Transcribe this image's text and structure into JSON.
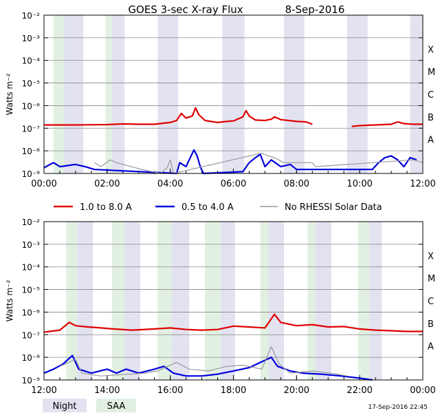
{
  "chart_data": [
    {
      "type": "line",
      "title": "GOES 3-sec X-ray Flux",
      "date": "8-Sep-2016",
      "ylabel": "Watts m⁻²",
      "yscale": "log",
      "ylim": [
        1e-09,
        0.01
      ],
      "ytick_labels": [
        {
          "exp": -2,
          "label": "10⁻²"
        },
        {
          "exp": -3,
          "label": "10⁻³"
        },
        {
          "exp": -4,
          "label": "10⁻⁴"
        },
        {
          "exp": -5,
          "label": "10⁻⁵"
        },
        {
          "exp": -6,
          "label": "10⁻⁶"
        },
        {
          "exp": -7,
          "label": "10⁻⁷"
        },
        {
          "exp": -8,
          "label": "10⁻⁸"
        },
        {
          "exp": -9,
          "label": "10⁻⁹"
        }
      ],
      "flare_classes": [
        {
          "exp": -4,
          "label": "X"
        },
        {
          "exp": -5,
          "label": "M"
        },
        {
          "exp": -6,
          "label": "C"
        },
        {
          "exp": -7,
          "label": "B"
        },
        {
          "exp": -8,
          "label": "A"
        }
      ],
      "x_range_hours": [
        0,
        12
      ],
      "x_tick_labels": [
        {
          "hour": 0,
          "label": "00:00"
        },
        {
          "hour": 2,
          "label": "02:00"
        },
        {
          "hour": 4,
          "label": "04:00"
        },
        {
          "hour": 6,
          "label": "06:00"
        },
        {
          "hour": 8,
          "label": "08:00"
        },
        {
          "hour": 10,
          "label": "10:00"
        },
        {
          "hour": 12,
          "label": "12:00"
        }
      ],
      "night_intervals": [
        [
          0.65,
          1.25
        ],
        [
          2.15,
          2.55
        ],
        [
          3.6,
          4.25
        ],
        [
          5.65,
          6.35
        ],
        [
          7.6,
          8.25
        ],
        [
          9.6,
          10.25
        ],
        [
          11.6,
          12.0
        ]
      ],
      "saa_intervals": [
        [
          0.3,
          0.65
        ],
        [
          1.95,
          2.15
        ]
      ],
      "series": [
        {
          "name": "1.0 to 8.0 A",
          "color": "#e00000",
          "points": [
            [
              0,
              1.4e-07
            ],
            [
              1,
              1.4e-07
            ],
            [
              2,
              1.45e-07
            ],
            [
              2.5,
              1.55e-07
            ],
            [
              3,
              1.5e-07
            ],
            [
              3.5,
              1.5e-07
            ],
            [
              4,
              1.8e-07
            ],
            [
              4.2,
              2.2e-07
            ],
            [
              4.35,
              4.5e-07
            ],
            [
              4.5,
              2.8e-07
            ],
            [
              4.7,
              3.5e-07
            ],
            [
              4.8,
              8e-07
            ],
            [
              4.9,
              4e-07
            ],
            [
              5.1,
              2.2e-07
            ],
            [
              5.5,
              1.8e-07
            ],
            [
              5.8,
              2e-07
            ],
            [
              6,
              2.1e-07
            ],
            [
              6.3,
              3.2e-07
            ],
            [
              6.4,
              6e-07
            ],
            [
              6.5,
              3.5e-07
            ],
            [
              6.7,
              2.3e-07
            ],
            [
              7,
              2.2e-07
            ],
            [
              7.2,
              2.5e-07
            ],
            [
              7.3,
              3.2e-07
            ],
            [
              7.5,
              2.4e-07
            ],
            [
              8,
              2e-07
            ],
            [
              8.3,
              1.9e-07
            ],
            [
              8.5,
              1.5e-07
            ]
          ],
          "points2": [
            [
              9.75,
              1.2e-07
            ],
            [
              10,
              1.3e-07
            ],
            [
              10.5,
              1.4e-07
            ],
            [
              11,
              1.5e-07
            ],
            [
              11.2,
              1.9e-07
            ],
            [
              11.4,
              1.6e-07
            ],
            [
              11.7,
              1.5e-07
            ],
            [
              12,
              1.5e-07
            ]
          ]
        },
        {
          "name": "0.5 to 4.0 A",
          "color": "#0000dd",
          "points": [
            [
              0.0,
              1.8e-09
            ],
            [
              0.3,
              3e-09
            ],
            [
              0.5,
              2e-09
            ],
            [
              1.0,
              2.5e-09
            ],
            [
              1.3,
              2e-09
            ],
            [
              1.6,
              1.5e-09
            ],
            [
              4.2,
              1e-09
            ],
            [
              4.3,
              3e-09
            ],
            [
              4.5,
              2e-09
            ],
            [
              4.6,
              4e-09
            ],
            [
              4.75,
              1.1e-08
            ],
            [
              4.85,
              6e-09
            ],
            [
              4.95,
              2e-09
            ],
            [
              5.05,
              1e-09
            ],
            [
              6.3,
              1.2e-09
            ],
            [
              6.5,
              3e-09
            ],
            [
              6.7,
              5e-09
            ],
            [
              6.85,
              7e-09
            ],
            [
              7.0,
              2e-09
            ],
            [
              7.2,
              4e-09
            ],
            [
              7.5,
              2e-09
            ],
            [
              7.8,
              2.5e-09
            ],
            [
              8.0,
              1.5e-09
            ],
            [
              10.4,
              1.5e-09
            ],
            [
              10.6,
              3e-09
            ],
            [
              10.8,
              5e-09
            ],
            [
              11.0,
              6e-09
            ],
            [
              11.2,
              4e-09
            ],
            [
              11.4,
              2e-09
            ],
            [
              11.6,
              5e-09
            ],
            [
              11.8,
              4e-09
            ]
          ]
        },
        {
          "name": "No RHESSI Solar Data",
          "color": "#999999",
          "points": [
            [
              1.6,
              3e-09
            ],
            [
              1.8,
              2e-09
            ],
            [
              2.1,
              4e-09
            ],
            [
              2.3,
              3e-09
            ],
            [
              3.1,
              1.5e-09
            ],
            [
              3.7,
              1e-09
            ],
            [
              3.9,
              1.8e-09
            ],
            [
              4.0,
              4e-09
            ],
            [
              4.1,
              1e-09
            ],
            [
              6.9,
              8e-09
            ],
            [
              7.1,
              6e-09
            ],
            [
              7.3,
              5e-09
            ],
            [
              7.6,
              3e-09
            ],
            [
              8.5,
              3e-09
            ],
            [
              8.6,
              2e-09
            ],
            [
              11.7,
              4e-09
            ],
            [
              12,
              3e-09
            ]
          ]
        }
      ]
    },
    {
      "type": "line",
      "ylabel": "Watts m⁻²",
      "yscale": "log",
      "ylim": [
        1e-09,
        0.01
      ],
      "ytick_labels": [
        {
          "exp": -2,
          "label": "10⁻²"
        },
        {
          "exp": -3,
          "label": "10⁻³"
        },
        {
          "exp": -4,
          "label": "10⁻⁴"
        },
        {
          "exp": -5,
          "label": "10⁻⁵"
        },
        {
          "exp": -6,
          "label": "10⁻⁶"
        },
        {
          "exp": -7,
          "label": "10⁻⁷"
        },
        {
          "exp": -8,
          "label": "10⁻⁸"
        },
        {
          "exp": -9,
          "label": "10⁻⁹"
        }
      ],
      "flare_classes": [
        {
          "exp": -4,
          "label": "X"
        },
        {
          "exp": -5,
          "label": "M"
        },
        {
          "exp": -6,
          "label": "C"
        },
        {
          "exp": -7,
          "label": "B"
        },
        {
          "exp": -8,
          "label": "A"
        }
      ],
      "x_range_hours": [
        12,
        24
      ],
      "x_tick_labels": [
        {
          "hour": 12,
          "label": "12:00"
        },
        {
          "hour": 14,
          "label": "14:00"
        },
        {
          "hour": 16,
          "label": "16:00"
        },
        {
          "hour": 18,
          "label": "18:00"
        },
        {
          "hour": 20,
          "label": "20:00"
        },
        {
          "hour": 22,
          "label": "22:00"
        },
        {
          "hour": 24,
          "label": "00:00"
        }
      ],
      "night_intervals": [
        [
          13.05,
          13.55
        ],
        [
          14.55,
          15.05
        ],
        [
          16.05,
          16.6
        ],
        [
          17.6,
          18.05
        ],
        [
          19.1,
          19.6
        ],
        [
          20.6,
          21.1
        ],
        [
          22.3,
          22.7
        ]
      ],
      "saa_intervals": [
        [
          12.7,
          13.05
        ],
        [
          14.15,
          14.55
        ],
        [
          15.6,
          16.05
        ],
        [
          17.1,
          17.6
        ],
        [
          18.85,
          19.1
        ],
        [
          20.35,
          20.6
        ],
        [
          21.95,
          22.3
        ]
      ],
      "series": [
        {
          "name": "1.0 to 8.0 A",
          "color": "#e00000",
          "points": [
            [
              12,
              1.3e-07
            ],
            [
              12.5,
              1.6e-07
            ],
            [
              12.8,
              3.5e-07
            ],
            [
              13,
              2.5e-07
            ],
            [
              13.4,
              2.2e-07
            ],
            [
              13.8,
              2e-07
            ],
            [
              14.2,
              1.8e-07
            ],
            [
              14.8,
              1.6e-07
            ],
            [
              15.5,
              1.8e-07
            ],
            [
              16,
              2e-07
            ],
            [
              16.5,
              1.7e-07
            ],
            [
              17,
              1.6e-07
            ],
            [
              17.5,
              1.7e-07
            ],
            [
              18,
              2.4e-07
            ],
            [
              18.5,
              2.2e-07
            ],
            [
              19,
              2e-07
            ],
            [
              19.3,
              8e-07
            ],
            [
              19.5,
              3.5e-07
            ],
            [
              20,
              2.5e-07
            ],
            [
              20.5,
              2.8e-07
            ],
            [
              21,
              2.2e-07
            ],
            [
              21.5,
              2.3e-07
            ],
            [
              22,
              1.8e-07
            ],
            [
              22.5,
              1.6e-07
            ],
            [
              23,
              1.5e-07
            ],
            [
              23.5,
              1.4e-07
            ],
            [
              24,
              1.4e-07
            ]
          ]
        },
        {
          "name": "0.5 to 4.0 A",
          "color": "#0000dd",
          "points": [
            [
              12,
              2e-09
            ],
            [
              12.3,
              3e-09
            ],
            [
              12.6,
              5e-09
            ],
            [
              12.9,
              1.2e-08
            ],
            [
              13.1,
              3e-09
            ],
            [
              13.5,
              2e-09
            ],
            [
              14,
              3e-09
            ],
            [
              14.3,
              2e-09
            ],
            [
              14.6,
              3e-09
            ],
            [
              15,
              2e-09
            ],
            [
              15.5,
              3e-09
            ],
            [
              15.8,
              4e-09
            ],
            [
              16.1,
              2e-09
            ],
            [
              16.5,
              1.5e-09
            ],
            [
              17,
              1.5e-09
            ],
            [
              17.5,
              1.8e-09
            ],
            [
              18,
              2.5e-09
            ],
            [
              18.5,
              3.5e-09
            ],
            [
              19.2,
              1e-08
            ],
            [
              19.4,
              4e-09
            ],
            [
              19.8,
              2.5e-09
            ],
            [
              20.2,
              2e-09
            ],
            [
              20.8,
              1.8e-09
            ],
            [
              21.4,
              1.5e-09
            ],
            [
              22,
              1.2e-09
            ],
            [
              22.4,
              1e-09
            ]
          ]
        },
        {
          "name": "No RHESSI Solar Data",
          "color": "#999999",
          "points": [
            [
              12.5,
              4e-09
            ],
            [
              13.0,
              8e-09
            ],
            [
              13.2,
              2e-09
            ],
            [
              13.8,
              1.5e-09
            ],
            [
              15.2,
              2e-09
            ],
            [
              15.6,
              2.5e-09
            ],
            [
              16.2,
              6e-09
            ],
            [
              16.6,
              3e-09
            ],
            [
              17.2,
              2.5e-09
            ],
            [
              17.8,
              4e-09
            ],
            [
              18.3,
              4.5e-09
            ],
            [
              18.9,
              3e-09
            ],
            [
              19.2,
              3e-08
            ],
            [
              19.45,
              5e-09
            ],
            [
              19.8,
              2e-09
            ],
            [
              20.5,
              2.5e-09
            ],
            [
              21.1,
              2e-09
            ],
            [
              21.6,
              1.5e-09
            ]
          ]
        }
      ]
    }
  ],
  "legend": {
    "items": [
      {
        "label": "1.0 to 8.0 A",
        "color": "#e00000"
      },
      {
        "label": "0.5 to 4.0 A",
        "color": "#0000dd"
      },
      {
        "label": "No RHESSI Solar Data",
        "color": "#999999"
      }
    ]
  },
  "bottom_legend": {
    "night_label": "Night",
    "saa_label": "SAA",
    "night_color": "#e2e2f0",
    "saa_color": "#e2f0e2"
  },
  "timestamp": "17-Sep-2016 22:45"
}
